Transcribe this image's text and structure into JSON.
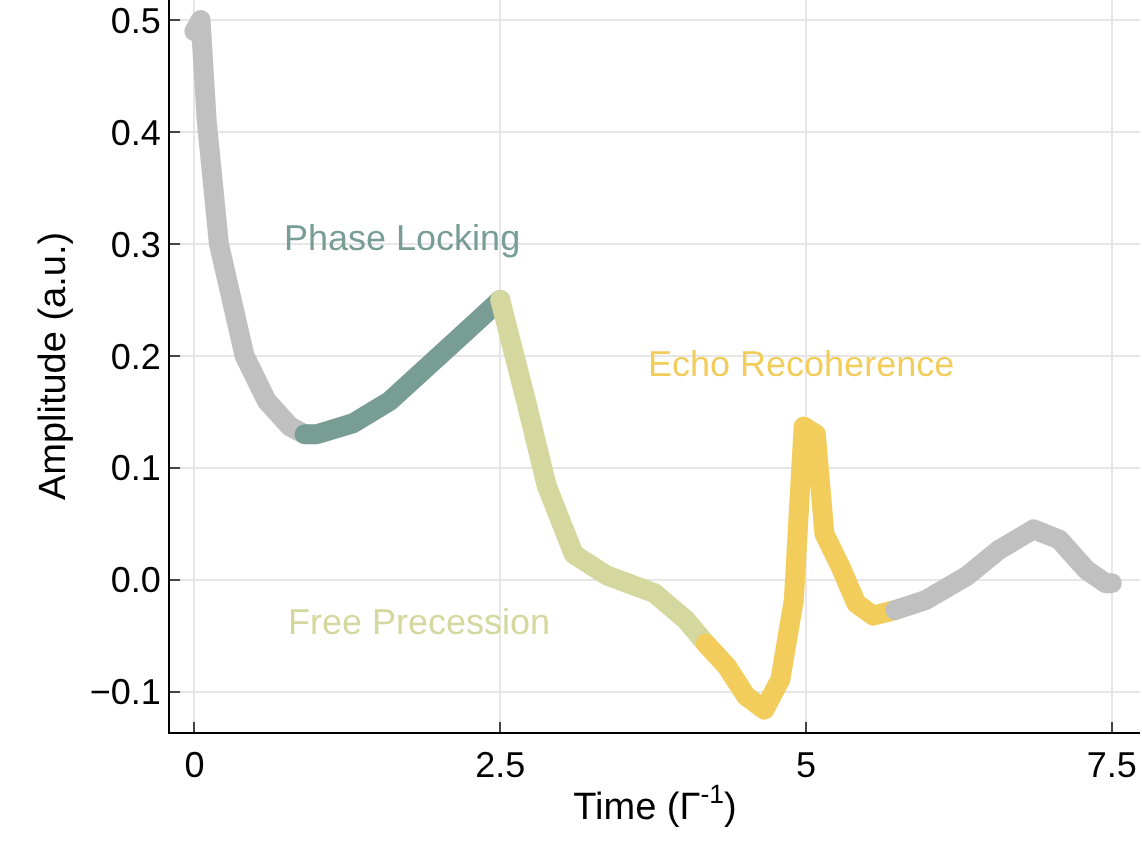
{
  "chart_data": {
    "type": "line",
    "xlabel": "Time (Γ$^{-1}$)",
    "ylabel": "Amplitude (a.u.)",
    "xlim": [
      -0.2,
      7.73
    ],
    "ylim": [
      -0.136,
      0.518
    ],
    "xticks": [
      0,
      2.5,
      5,
      7.5
    ],
    "yticks": [
      {
        "value": -0.1,
        "label": "−0.1"
      },
      {
        "value": 0,
        "label": "0.0"
      },
      0.1,
      0.2,
      0.3,
      0.4,
      0.5
    ],
    "grid": true,
    "legend": false,
    "line_style": "solid",
    "series": [
      {
        "color": "#c0c0c0",
        "x": [
          0,
          0.05,
          0.1,
          0.2,
          0.41,
          0.59,
          0.78,
          0.9
        ],
        "values": [
          0.49,
          0.5,
          0.41,
          0.3,
          0.2,
          0.16,
          0.137,
          0.13
        ]
      },
      {
        "name": "Phase Locking",
        "color": "#789d94",
        "x": [
          0.9,
          1.0,
          1.3,
          1.6,
          1.9,
          2.2,
          2.5
        ],
        "values": [
          0.13,
          0.13,
          0.14,
          0.16,
          0.19,
          0.22,
          0.25
        ]
      },
      {
        "name": "Free Precession",
        "color": "#d4d89e",
        "x": [
          2.5,
          2.71,
          2.88,
          3.1,
          3.37,
          3.76,
          4.02,
          4.18
        ],
        "values": [
          0.25,
          0.16,
          0.084,
          0.023,
          0.004,
          -0.012,
          -0.036,
          -0.057
        ]
      },
      {
        "name": "Echo Recoherence",
        "color": "#f2cd5c",
        "x": [
          4.18,
          4.35,
          4.51,
          4.66,
          4.79,
          4.9,
          4.98,
          5.08,
          5.15,
          5.28,
          5.41,
          5.55,
          5.73
        ],
        "values": [
          -0.057,
          -0.077,
          -0.104,
          -0.116,
          -0.089,
          -0.018,
          0.137,
          0.13,
          0.041,
          0.012,
          -0.021,
          -0.032,
          -0.027
        ]
      },
      {
        "color": "#c0c0c0",
        "x": [
          5.73,
          5.98,
          6.31,
          6.58,
          6.86,
          7.07,
          7.29,
          7.45,
          7.5
        ],
        "values": [
          -0.027,
          -0.018,
          0.003,
          0.027,
          0.045,
          0.036,
          0.009,
          -0.003,
          -0.003
        ]
      }
    ]
  }
}
